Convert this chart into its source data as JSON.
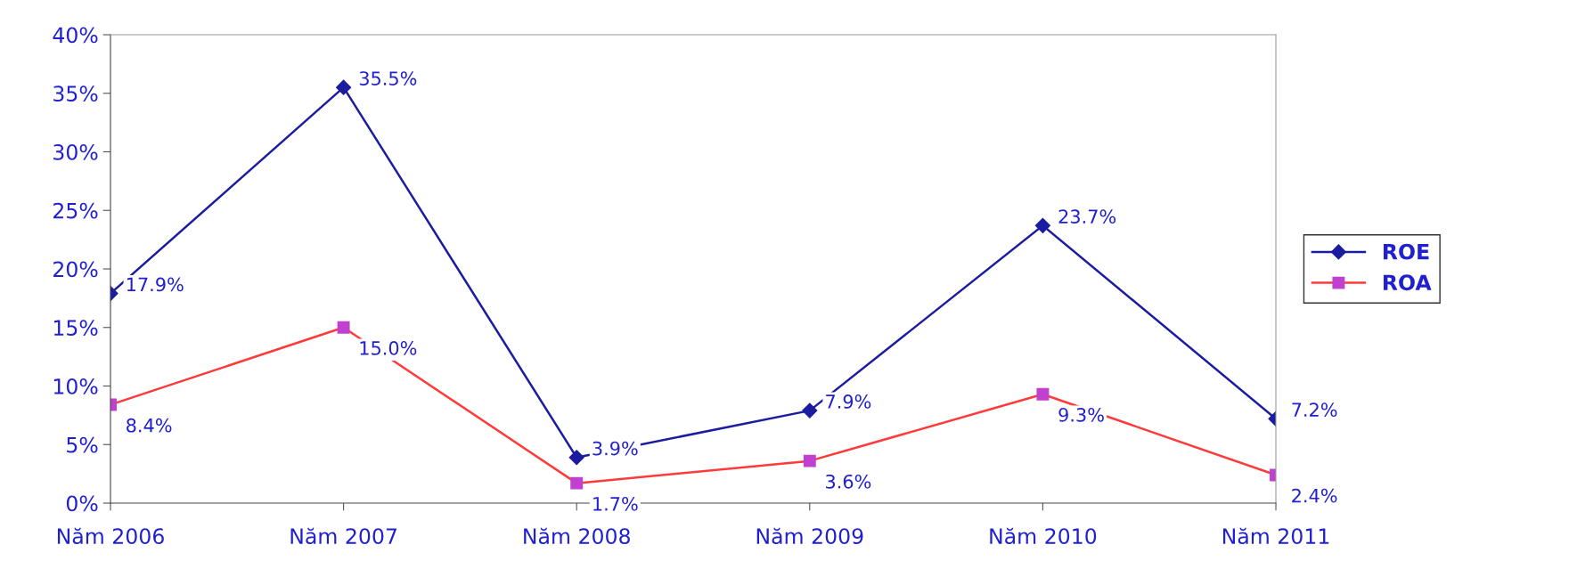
{
  "chart_data": {
    "type": "line",
    "categories": [
      "Năm 2006",
      "Năm 2007",
      "Năm 2008",
      "Năm 2009",
      "Năm 2010",
      "Năm 2011"
    ],
    "series": [
      {
        "name": "ROE",
        "color": "#1c1ca0",
        "marker": "diamond",
        "values": [
          17.9,
          35.5,
          3.9,
          7.9,
          23.7,
          7.2
        ],
        "value_labels": [
          "17.9%",
          "35.5%",
          "3.9%",
          "7.9%",
          "23.7%",
          "7.2%"
        ]
      },
      {
        "name": "ROA",
        "color": "#ff3a3a",
        "marker": "square",
        "values": [
          8.4,
          15.0,
          1.7,
          3.6,
          9.3,
          2.4
        ],
        "value_labels": [
          "8.4%",
          "15.0%",
          "1.7%",
          "3.6%",
          "9.3%",
          "2.4%"
        ]
      }
    ],
    "ylim": [
      0,
      40
    ],
    "yticks": [
      {
        "value": 0,
        "label": "0%"
      },
      {
        "value": 5,
        "label": "5%"
      },
      {
        "value": 10,
        "label": "10%"
      },
      {
        "value": 15,
        "label": "15%"
      },
      {
        "value": 20,
        "label": "20%"
      },
      {
        "value": 25,
        "label": "25%"
      },
      {
        "value": 30,
        "label": "30%"
      },
      {
        "value": 35,
        "label": "35%"
      },
      {
        "value": 40,
        "label": "40%"
      }
    ],
    "grid": false,
    "legend": "right",
    "line_style": "solid"
  }
}
